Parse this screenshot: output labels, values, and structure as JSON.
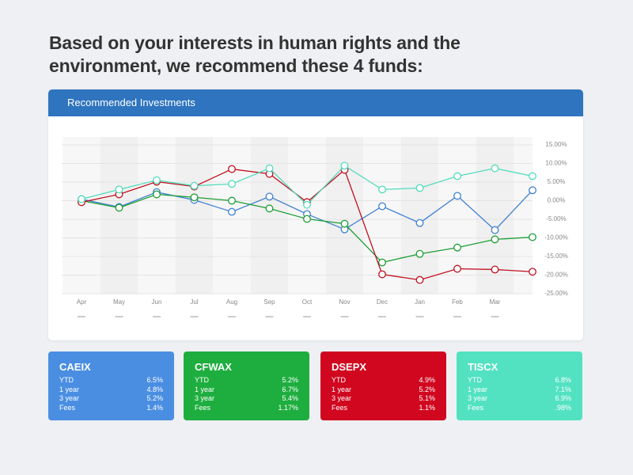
{
  "heading": "Based on your interests in human rights and the environment, we recommend these 4 funds:",
  "panel_title": "Recommended Investments",
  "chart_data": {
    "type": "line",
    "categories": [
      "Apr",
      "May",
      "Jun",
      "Jul",
      "Aug",
      "Sep",
      "Oct",
      "Nov",
      "Dec",
      "Jan",
      "Feb",
      "Mar",
      null
    ],
    "series": [
      {
        "name": "CAEIX",
        "color": "#3f80d2",
        "card_color": "#4a8ee2",
        "values": [
          0.4,
          -1.7,
          2.3,
          0.2,
          -3.0,
          1.1,
          -3.6,
          -7.7,
          -1.5,
          -6.0,
          1.3,
          -7.9,
          2.8
        ]
      },
      {
        "name": "CFWAX",
        "color": "#1e9e36",
        "card_color": "#1eae3f",
        "values": [
          0,
          -1.9,
          1.7,
          0.9,
          0,
          -2.1,
          -4.9,
          -6.2,
          -16.6,
          -14.3,
          -12.6,
          -10.4,
          -9.8
        ]
      },
      {
        "name": "DSEPX",
        "color": "#c0101e",
        "card_color": "#d0071f",
        "values": [
          -0.4,
          1.7,
          5.1,
          3.8,
          8.5,
          7.2,
          -0.4,
          8.3,
          -19.8,
          -21.3,
          -18.3,
          -18.5,
          -19.1
        ]
      },
      {
        "name": "TISCX",
        "color": "#52dcbc",
        "card_color": "#52e2c2",
        "values": [
          0.4,
          3.0,
          5.5,
          4.0,
          4.5,
          8.7,
          -1.1,
          9.4,
          3.0,
          3.4,
          6.6,
          8.7,
          6.6
        ]
      }
    ],
    "ylim": [
      -25,
      15
    ],
    "yticks": [
      {
        "value": 15,
        "label": "15.00%"
      },
      {
        "value": 10,
        "label": "10.00%"
      },
      {
        "value": 5,
        "label": "5.00%"
      },
      {
        "value": 0,
        "label": "0.00%"
      },
      {
        "value": -5,
        "label": "-5.00%"
      },
      {
        "value": -10,
        "label": "-10.00%"
      },
      {
        "value": -15,
        "label": "-15.00%"
      },
      {
        "value": -20,
        "label": "-20.00%"
      },
      {
        "value": -25,
        "label": "-25.00%"
      }
    ],
    "grid": true
  },
  "funds": [
    {
      "rows": [
        [
          "YTD",
          "6.5%"
        ],
        [
          "1 year",
          "4.8%"
        ],
        [
          "3 year",
          "5.2%"
        ],
        [
          "Fees",
          "1.4%"
        ]
      ]
    },
    {
      "rows": [
        [
          "YTD",
          "5.2%"
        ],
        [
          "1 year",
          "6.7%"
        ],
        [
          "3 year",
          "5.4%"
        ],
        [
          "Fees",
          "1.17%"
        ]
      ]
    },
    {
      "rows": [
        [
          "YTD",
          "4.9%"
        ],
        [
          "1 year",
          "5.2%"
        ],
        [
          "3 year",
          "5.1%"
        ],
        [
          "Fees",
          "1.1%"
        ]
      ]
    },
    {
      "rows": [
        [
          "YTD",
          "6.8%"
        ],
        [
          "1 year",
          "7.1%"
        ],
        [
          "3 year",
          "6.9%"
        ],
        [
          "Fees",
          ".98%"
        ]
      ]
    }
  ]
}
